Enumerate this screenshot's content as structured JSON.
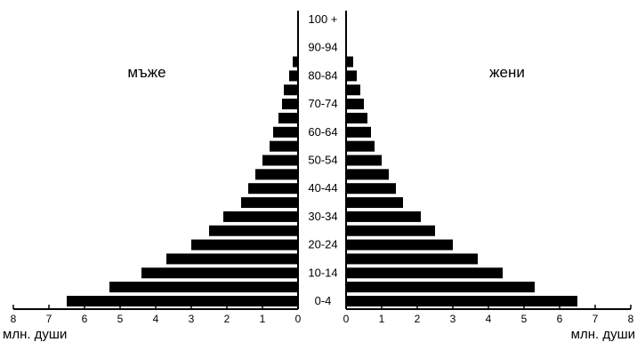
{
  "chart_data": {
    "type": "bar",
    "orientation": "horizontal",
    "subtype": "population-pyramid",
    "title": "",
    "age_groups": [
      "0-4",
      "5-9",
      "10-14",
      "15-19",
      "20-24",
      "25-29",
      "30-34",
      "35-39",
      "40-44",
      "45-49",
      "50-54",
      "55-59",
      "60-64",
      "65-69",
      "70-74",
      "75-79",
      "80-84",
      "85-89",
      "90-94",
      "95-99",
      "100 +"
    ],
    "age_labels_shown": [
      "0-4",
      "10-14",
      "20-24",
      "30-34",
      "40-44",
      "50-54",
      "60-64",
      "70-74",
      "80-84",
      "90-94",
      "100 +"
    ],
    "series": [
      {
        "name": "мъже",
        "side": "left",
        "values": [
          6.5,
          5.3,
          4.4,
          3.7,
          3.0,
          2.5,
          2.1,
          1.6,
          1.4,
          1.2,
          1.0,
          0.8,
          0.7,
          0.55,
          0.45,
          0.4,
          0.25,
          0.15,
          0,
          0,
          0
        ]
      },
      {
        "name": "жени",
        "side": "right",
        "values": [
          6.5,
          5.3,
          4.4,
          3.7,
          3.0,
          2.5,
          2.1,
          1.6,
          1.4,
          1.2,
          1.0,
          0.8,
          0.7,
          0.6,
          0.5,
          0.4,
          0.3,
          0.2,
          0,
          0,
          0
        ]
      }
    ],
    "xlabel": "млн. души",
    "xlim": [
      0,
      8
    ],
    "ticks": [
      0,
      1,
      2,
      3,
      4,
      5,
      6,
      7,
      8
    ],
    "grid": false,
    "legend": "none"
  }
}
